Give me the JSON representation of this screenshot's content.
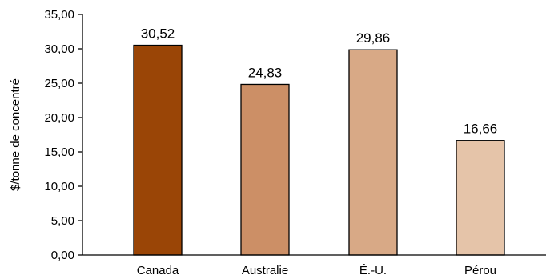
{
  "chart_data": {
    "type": "bar",
    "title": "",
    "xlabel": "",
    "ylabel": "$/tonne de concentré",
    "categories": [
      "Canada",
      "Australie",
      "É.-U.",
      "Pérou"
    ],
    "values": [
      30.52,
      24.83,
      29.86,
      16.66
    ],
    "value_labels": [
      "30,52",
      "24,83",
      "29,86",
      "16,66"
    ],
    "ylim": [
      0,
      35
    ],
    "y_ticks": [
      0,
      5,
      10,
      15,
      20,
      25,
      30,
      35
    ],
    "y_tick_labels": [
      "0,00",
      "5,00",
      "10,00",
      "15,00",
      "20,00",
      "25,00",
      "30,00",
      "35,00"
    ],
    "bar_colors": [
      "#9a4506",
      "#cc8f66",
      "#d8a986",
      "#e5c4a9"
    ],
    "grid": false,
    "legend": "none"
  }
}
